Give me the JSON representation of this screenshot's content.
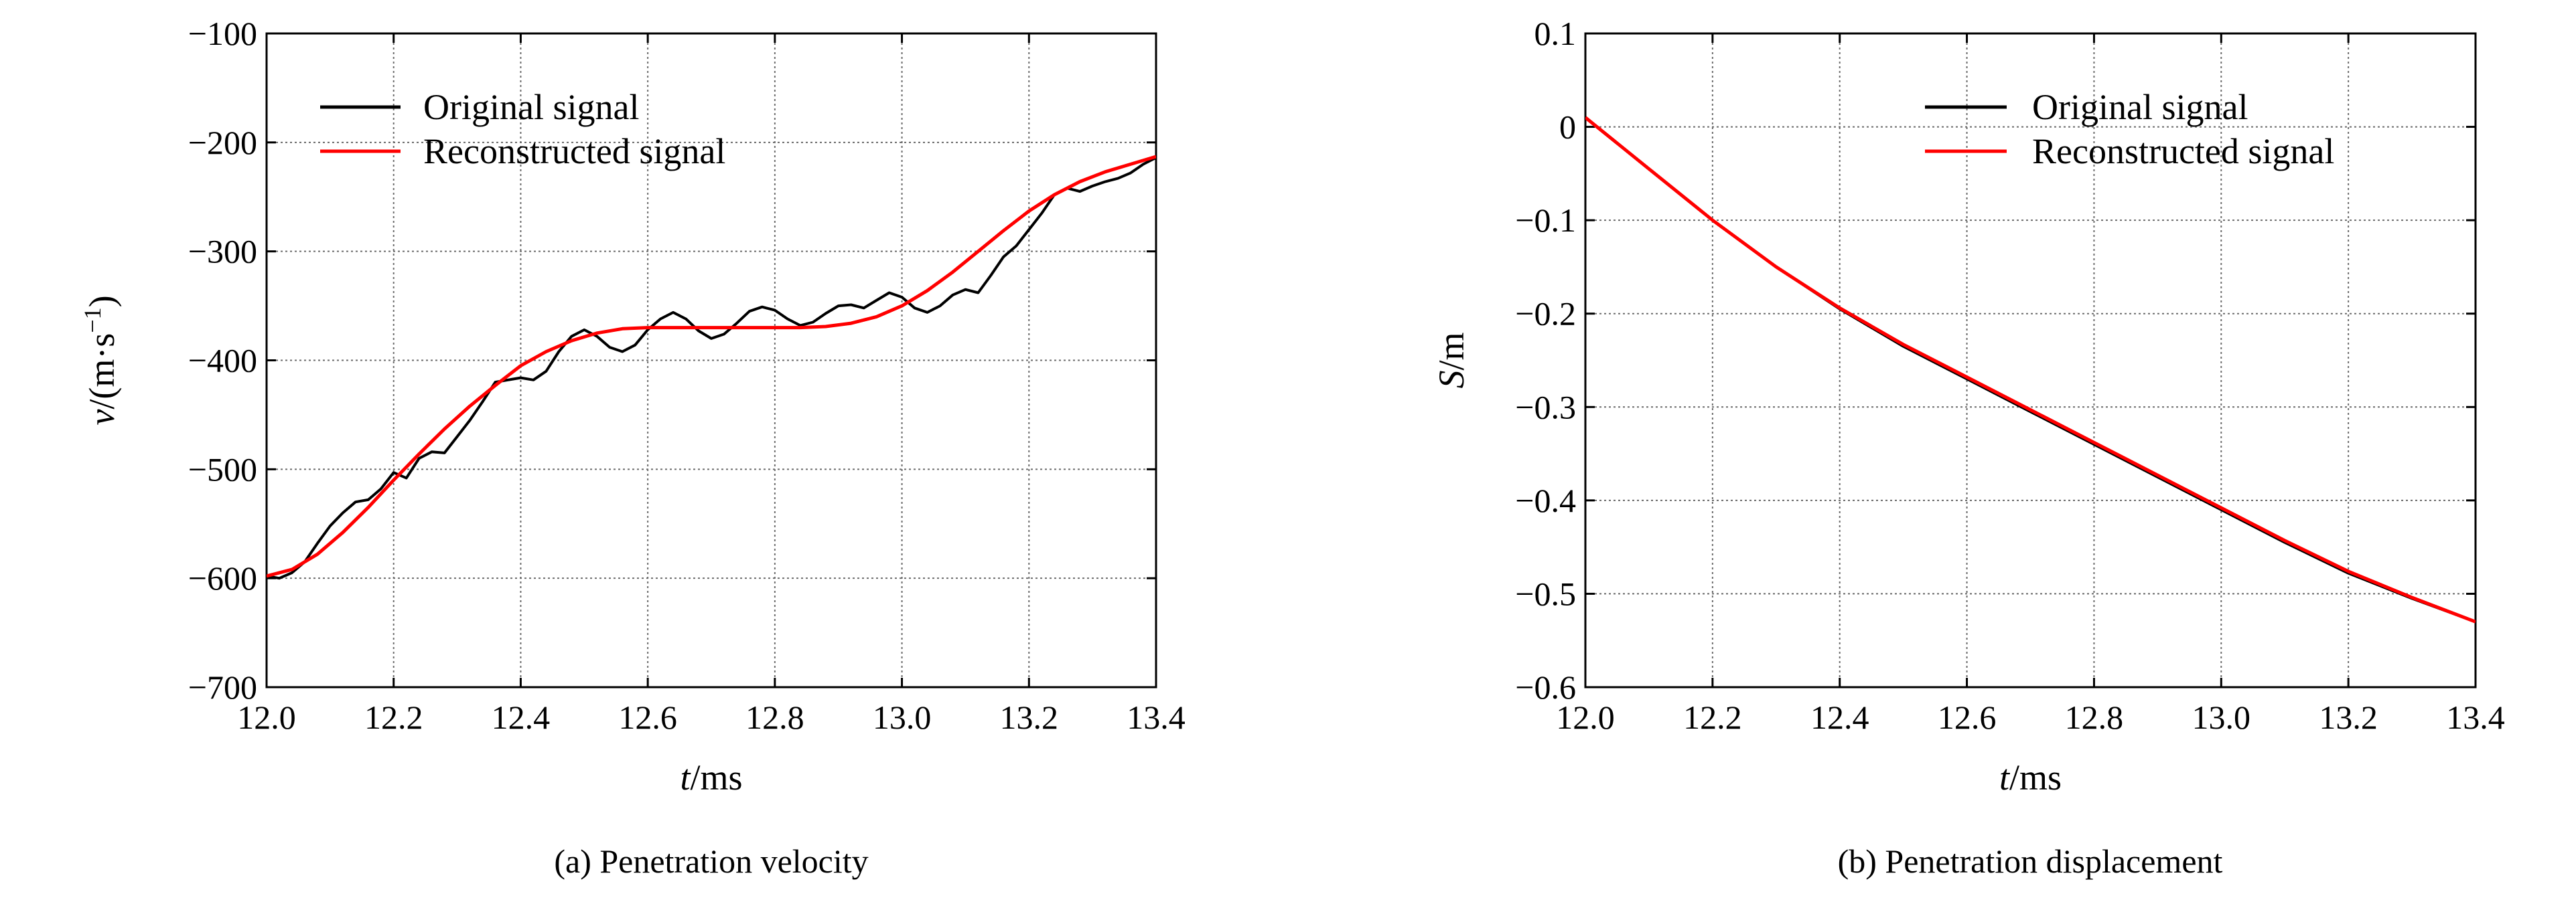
{
  "chart_data": [
    {
      "type": "line",
      "caption": "(a) Penetration velocity",
      "xlabel_var": "t",
      "xlabel_unit": "/ms",
      "ylabel_var": "v",
      "ylabel_unit": "/(m·s",
      "ylabel_exp": "−1",
      "ylabel_close": ")",
      "xlim": [
        12.0,
        13.4
      ],
      "ylim": [
        -700,
        -100
      ],
      "xticks": [
        12.0,
        12.2,
        12.4,
        12.6,
        12.8,
        13.0,
        13.2,
        13.4
      ],
      "xtick_labels": [
        "12.0",
        "12.2",
        "12.4",
        "12.6",
        "12.8",
        "13.0",
        "13.2",
        "13.4"
      ],
      "yticks": [
        -100,
        -200,
        -300,
        -400,
        -500,
        -600,
        -700
      ],
      "ytick_labels": [
        "−100",
        "−200",
        "−300",
        "−400",
        "−500",
        "−600",
        "−700"
      ],
      "grid": true,
      "legend_position": "top-left",
      "series": [
        {
          "name": "Original signal",
          "color": "#000000",
          "x": [
            12.0,
            12.02,
            12.04,
            12.06,
            12.08,
            12.1,
            12.12,
            12.14,
            12.16,
            12.18,
            12.2,
            12.22,
            12.24,
            12.26,
            12.28,
            12.3,
            12.32,
            12.34,
            12.36,
            12.38,
            12.4,
            12.42,
            12.44,
            12.46,
            12.48,
            12.5,
            12.52,
            12.54,
            12.56,
            12.58,
            12.6,
            12.62,
            12.64,
            12.66,
            12.68,
            12.7,
            12.72,
            12.74,
            12.76,
            12.78,
            12.8,
            12.82,
            12.84,
            12.86,
            12.88,
            12.9,
            12.92,
            12.94,
            12.96,
            12.98,
            13.0,
            13.02,
            13.04,
            13.06,
            13.08,
            13.1,
            13.12,
            13.14,
            13.16,
            13.18,
            13.2,
            13.22,
            13.24,
            13.26,
            13.28,
            13.3,
            13.32,
            13.34,
            13.36,
            13.38,
            13.4
          ],
          "y": [
            -598,
            -600,
            -595,
            -585,
            -568,
            -552,
            -540,
            -530,
            -528,
            -518,
            -503,
            -508,
            -490,
            -484,
            -485,
            -470,
            -455,
            -438,
            -420,
            -418,
            -416,
            -418,
            -410,
            -392,
            -378,
            -372,
            -378,
            -388,
            -392,
            -386,
            -372,
            -362,
            -356,
            -362,
            -373,
            -380,
            -376,
            -366,
            -355,
            -351,
            -354,
            -362,
            -368,
            -365,
            -357,
            -350,
            -349,
            -352,
            -345,
            -338,
            -342,
            -352,
            -356,
            -350,
            -340,
            -335,
            -338,
            -322,
            -305,
            -295,
            -280,
            -265,
            -248,
            -242,
            -245,
            -240,
            -236,
            -233,
            -228,
            -220,
            -214
          ]
        },
        {
          "name": "Reconstructed signal",
          "color": "#ff0000",
          "x": [
            12.0,
            12.04,
            12.08,
            12.12,
            12.16,
            12.2,
            12.24,
            12.28,
            12.32,
            12.36,
            12.4,
            12.44,
            12.48,
            12.52,
            12.56,
            12.6,
            12.64,
            12.68,
            12.72,
            12.76,
            12.8,
            12.84,
            12.88,
            12.92,
            12.96,
            13.0,
            13.04,
            13.08,
            13.12,
            13.16,
            13.2,
            13.24,
            13.28,
            13.32,
            13.36,
            13.4
          ],
          "y": [
            -598,
            -592,
            -578,
            -558,
            -535,
            -510,
            -486,
            -463,
            -442,
            -423,
            -405,
            -392,
            -382,
            -375,
            -371,
            -370,
            -370,
            -370,
            -370,
            -370,
            -370,
            -370,
            -369,
            -366,
            -360,
            -350,
            -336,
            -319,
            -300,
            -281,
            -263,
            -248,
            -236,
            -227,
            -220,
            -213
          ]
        }
      ]
    },
    {
      "type": "line",
      "caption": "(b) Penetration displacement",
      "xlabel_var": "t",
      "xlabel_unit": "/ms",
      "ylabel_var": "S",
      "ylabel_unit": "/m",
      "xlim": [
        12.0,
        13.4
      ],
      "ylim": [
        -0.6,
        0.1
      ],
      "xticks": [
        12.0,
        12.2,
        12.4,
        12.6,
        12.8,
        13.0,
        13.2,
        13.4
      ],
      "xtick_labels": [
        "12.0",
        "12.2",
        "12.4",
        "12.6",
        "12.8",
        "13.0",
        "13.2",
        "13.4"
      ],
      "yticks": [
        0.1,
        0,
        -0.1,
        -0.2,
        -0.3,
        -0.4,
        -0.5,
        -0.6
      ],
      "ytick_labels": [
        "0.1",
        "0",
        "−0.1",
        "−0.2",
        "−0.3",
        "−0.4",
        "−0.5",
        "−0.6"
      ],
      "grid": true,
      "legend_position": "top-right",
      "series": [
        {
          "name": "Original signal",
          "color": "#000000",
          "x": [
            12.0,
            12.1,
            12.2,
            12.3,
            12.4,
            12.5,
            12.6,
            12.7,
            12.8,
            12.9,
            13.0,
            13.1,
            13.2,
            13.3,
            13.4
          ],
          "y": [
            0.01,
            -0.045,
            -0.1,
            -0.15,
            -0.195,
            -0.235,
            -0.27,
            -0.305,
            -0.34,
            -0.375,
            -0.41,
            -0.445,
            -0.478,
            -0.505,
            -0.53
          ]
        },
        {
          "name": "Reconstructed signal",
          "color": "#ff0000",
          "x": [
            12.0,
            12.1,
            12.2,
            12.3,
            12.4,
            12.5,
            12.6,
            12.7,
            12.8,
            12.9,
            13.0,
            13.1,
            13.2,
            13.3,
            13.4
          ],
          "y": [
            0.01,
            -0.045,
            -0.1,
            -0.15,
            -0.194,
            -0.233,
            -0.268,
            -0.303,
            -0.338,
            -0.373,
            -0.408,
            -0.443,
            -0.476,
            -0.504,
            -0.53
          ]
        }
      ]
    }
  ]
}
